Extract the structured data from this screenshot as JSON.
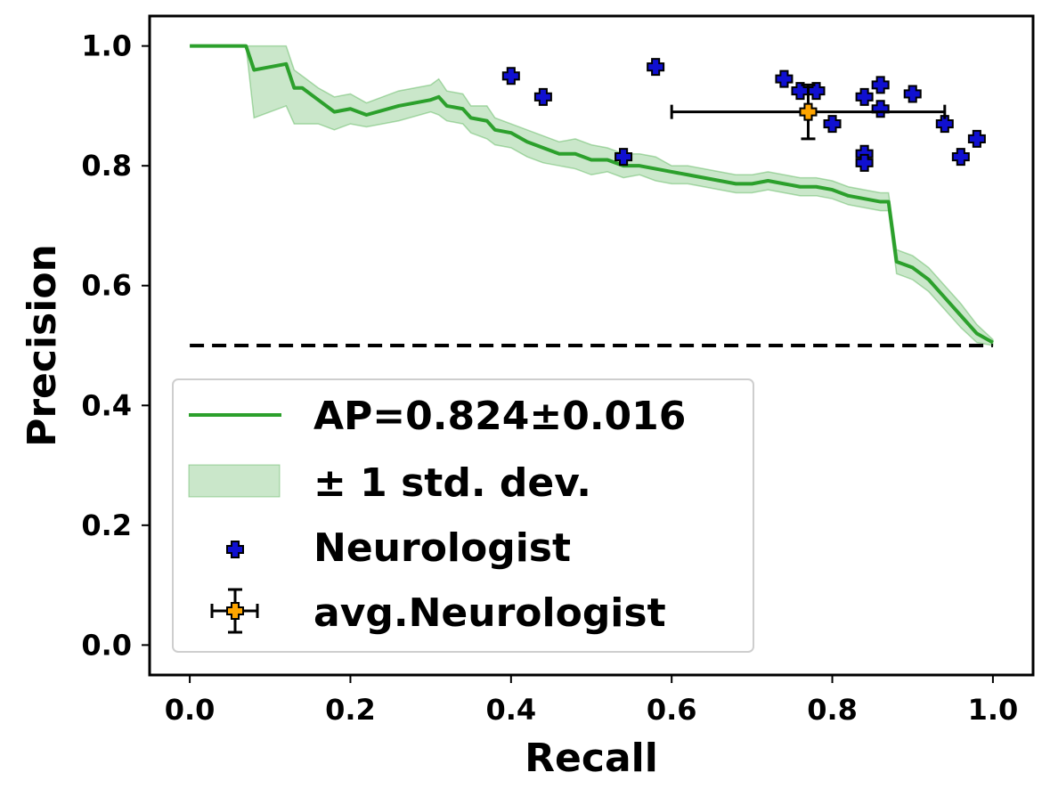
{
  "chart_data": {
    "type": "line",
    "title": "",
    "xlabel": "Recall",
    "ylabel": "Precision",
    "xlim": [
      -0.05,
      1.05
    ],
    "ylim": [
      -0.05,
      1.05
    ],
    "xticks": [
      0.0,
      0.2,
      0.4,
      0.6,
      0.8,
      1.0
    ],
    "yticks": [
      0.0,
      0.2,
      0.4,
      0.6,
      0.8,
      1.0
    ],
    "xtick_labels": [
      "0.0",
      "0.2",
      "0.4",
      "0.6",
      "0.8",
      "1.0"
    ],
    "ytick_labels": [
      "0.0",
      "0.2",
      "0.4",
      "0.6",
      "0.8",
      "1.0"
    ],
    "grid": false,
    "legend_position": "lower-left",
    "colors": {
      "mean": "#2ca02c",
      "band": "#2ca02c",
      "neurologist_fill": "#1010d0",
      "avg_fill": "#ffa500",
      "baseline": "#000000"
    },
    "series": [
      {
        "name": "AP=0.824±0.016",
        "kind": "line",
        "x": [
          0.0,
          0.07,
          0.08,
          0.12,
          0.13,
          0.14,
          0.16,
          0.18,
          0.2,
          0.22,
          0.26,
          0.3,
          0.31,
          0.32,
          0.34,
          0.35,
          0.37,
          0.38,
          0.4,
          0.42,
          0.44,
          0.46,
          0.48,
          0.5,
          0.52,
          0.54,
          0.56,
          0.58,
          0.6,
          0.62,
          0.64,
          0.66,
          0.68,
          0.7,
          0.72,
          0.74,
          0.76,
          0.78,
          0.8,
          0.82,
          0.84,
          0.86,
          0.87,
          0.88,
          0.9,
          0.92,
          0.94,
          0.96,
          0.98,
          1.0
        ],
        "y": [
          1.0,
          1.0,
          0.96,
          0.97,
          0.93,
          0.93,
          0.91,
          0.89,
          0.895,
          0.885,
          0.9,
          0.91,
          0.915,
          0.9,
          0.895,
          0.88,
          0.875,
          0.86,
          0.855,
          0.84,
          0.83,
          0.82,
          0.82,
          0.81,
          0.81,
          0.8,
          0.8,
          0.795,
          0.79,
          0.785,
          0.78,
          0.775,
          0.77,
          0.77,
          0.775,
          0.77,
          0.765,
          0.765,
          0.76,
          0.75,
          0.745,
          0.74,
          0.74,
          0.64,
          0.63,
          0.61,
          0.58,
          0.55,
          0.52,
          0.505
        ]
      },
      {
        "name": "± 1 std. dev.",
        "kind": "band",
        "x": [
          0.0,
          0.07,
          0.08,
          0.12,
          0.13,
          0.14,
          0.16,
          0.18,
          0.2,
          0.22,
          0.26,
          0.3,
          0.31,
          0.32,
          0.34,
          0.35,
          0.37,
          0.38,
          0.4,
          0.42,
          0.44,
          0.46,
          0.48,
          0.5,
          0.52,
          0.54,
          0.56,
          0.58,
          0.6,
          0.62,
          0.64,
          0.66,
          0.68,
          0.7,
          0.72,
          0.74,
          0.76,
          0.78,
          0.8,
          0.82,
          0.84,
          0.86,
          0.87,
          0.88,
          0.9,
          0.92,
          0.94,
          0.96,
          0.98,
          1.0
        ],
        "y_upper": [
          1.0,
          1.0,
          1.0,
          1.0,
          0.96,
          0.95,
          0.93,
          0.915,
          0.92,
          0.905,
          0.925,
          0.935,
          0.945,
          0.925,
          0.92,
          0.9,
          0.9,
          0.88,
          0.87,
          0.86,
          0.85,
          0.84,
          0.845,
          0.835,
          0.83,
          0.82,
          0.82,
          0.815,
          0.8,
          0.8,
          0.795,
          0.79,
          0.785,
          0.785,
          0.79,
          0.785,
          0.78,
          0.78,
          0.775,
          0.765,
          0.76,
          0.755,
          0.755,
          0.66,
          0.65,
          0.63,
          0.6,
          0.57,
          0.535,
          0.51
        ],
        "y_lower": [
          1.0,
          1.0,
          0.88,
          0.9,
          0.87,
          0.87,
          0.87,
          0.86,
          0.87,
          0.865,
          0.875,
          0.89,
          0.885,
          0.875,
          0.87,
          0.855,
          0.845,
          0.835,
          0.83,
          0.815,
          0.805,
          0.8,
          0.795,
          0.785,
          0.79,
          0.78,
          0.785,
          0.775,
          0.77,
          0.77,
          0.765,
          0.76,
          0.755,
          0.755,
          0.76,
          0.755,
          0.75,
          0.75,
          0.745,
          0.735,
          0.73,
          0.725,
          0.725,
          0.62,
          0.61,
          0.59,
          0.56,
          0.53,
          0.505,
          0.5
        ]
      },
      {
        "name": "Neurologist",
        "kind": "scatter",
        "x": [
          0.4,
          0.44,
          0.54,
          0.58,
          0.74,
          0.76,
          0.78,
          0.8,
          0.84,
          0.84,
          0.84,
          0.86,
          0.86,
          0.9,
          0.94,
          0.96,
          0.98
        ],
        "y": [
          0.95,
          0.915,
          0.815,
          0.965,
          0.945,
          0.925,
          0.925,
          0.87,
          0.915,
          0.82,
          0.805,
          0.935,
          0.895,
          0.92,
          0.87,
          0.815,
          0.845
        ]
      },
      {
        "name": "avg.Neurologist",
        "kind": "errorbar",
        "x": [
          0.77
        ],
        "y": [
          0.89
        ],
        "xerr": [
          0.17
        ],
        "yerr": [
          0.045
        ]
      }
    ],
    "baseline": {
      "y": 0.5,
      "x_range": [
        0.0,
        1.0
      ],
      "style": "dashed"
    }
  }
}
